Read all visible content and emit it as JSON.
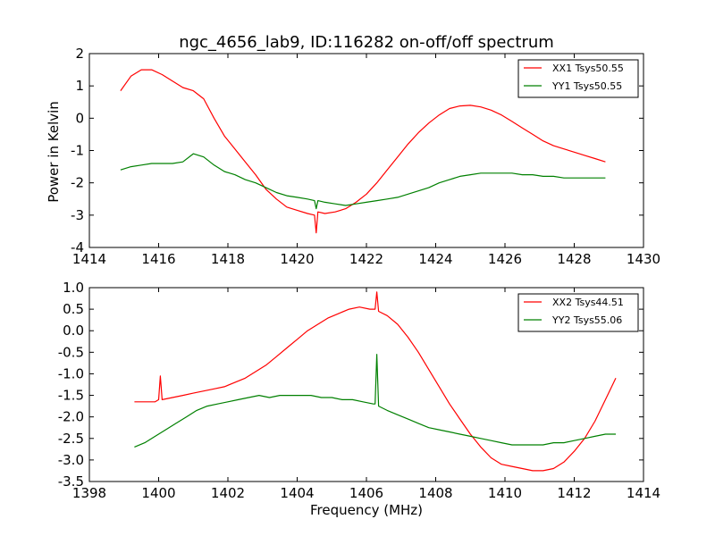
{
  "chart_data": [
    {
      "type": "line",
      "title": "ngc_4656_lab9, ID:116282 on-off/off spectrum",
      "xlabel": "",
      "ylabel": "Power in Kelvin",
      "xlim": [
        1414,
        1430
      ],
      "ylim": [
        -4,
        2
      ],
      "xticks": [
        "1414",
        "1416",
        "1418",
        "1420",
        "1422",
        "1424",
        "1426",
        "1428",
        "1430"
      ],
      "yticks": [
        "-4",
        "-3",
        "-2",
        "-1",
        "0",
        "1",
        "2"
      ],
      "grid": false,
      "legend_position": "top-right",
      "series": [
        {
          "name": "XX1 Tsys50.55",
          "color": "#ff0000",
          "x": [
            1414.9,
            1415.2,
            1415.5,
            1415.8,
            1416.1,
            1416.4,
            1416.7,
            1417.0,
            1417.3,
            1417.6,
            1417.9,
            1418.2,
            1418.5,
            1418.8,
            1419.1,
            1419.4,
            1419.7,
            1420.0,
            1420.3,
            1420.5,
            1420.55,
            1420.6,
            1420.8,
            1421.1,
            1421.4,
            1421.7,
            1422.0,
            1422.3,
            1422.6,
            1422.9,
            1423.2,
            1423.5,
            1423.8,
            1424.1,
            1424.4,
            1424.7,
            1425.0,
            1425.3,
            1425.6,
            1425.9,
            1426.2,
            1426.5,
            1426.8,
            1427.1,
            1427.4,
            1427.7,
            1428.0,
            1428.3,
            1428.6,
            1428.9
          ],
          "y": [
            0.85,
            1.3,
            1.5,
            1.5,
            1.35,
            1.15,
            0.95,
            0.85,
            0.6,
            0.0,
            -0.55,
            -0.95,
            -1.35,
            -1.75,
            -2.2,
            -2.5,
            -2.75,
            -2.85,
            -2.95,
            -3.0,
            -3.55,
            -2.9,
            -2.95,
            -2.9,
            -2.8,
            -2.6,
            -2.35,
            -2.0,
            -1.6,
            -1.2,
            -0.8,
            -0.45,
            -0.15,
            0.1,
            0.3,
            0.38,
            0.4,
            0.35,
            0.25,
            0.1,
            -0.1,
            -0.3,
            -0.5,
            -0.7,
            -0.85,
            -0.95,
            -1.05,
            -1.15,
            -1.25,
            -1.35
          ]
        },
        {
          "name": "YY1 Tsys50.55",
          "color": "#008000",
          "x": [
            1414.9,
            1415.2,
            1415.5,
            1415.8,
            1416.1,
            1416.4,
            1416.7,
            1417.0,
            1417.3,
            1417.6,
            1417.9,
            1418.2,
            1418.5,
            1418.8,
            1419.1,
            1419.4,
            1419.7,
            1420.0,
            1420.3,
            1420.5,
            1420.55,
            1420.6,
            1420.8,
            1421.1,
            1421.4,
            1421.7,
            1422.0,
            1422.3,
            1422.6,
            1422.9,
            1423.2,
            1423.5,
            1423.8,
            1424.1,
            1424.4,
            1424.7,
            1425.0,
            1425.3,
            1425.6,
            1425.9,
            1426.2,
            1426.5,
            1426.8,
            1427.1,
            1427.4,
            1427.7,
            1428.0,
            1428.3,
            1428.6,
            1428.9
          ],
          "y": [
            -1.6,
            -1.5,
            -1.45,
            -1.4,
            -1.4,
            -1.4,
            -1.35,
            -1.1,
            -1.2,
            -1.45,
            -1.65,
            -1.75,
            -1.9,
            -2.0,
            -2.15,
            -2.3,
            -2.4,
            -2.45,
            -2.5,
            -2.55,
            -2.8,
            -2.55,
            -2.6,
            -2.65,
            -2.7,
            -2.65,
            -2.6,
            -2.55,
            -2.5,
            -2.45,
            -2.35,
            -2.25,
            -2.15,
            -2.0,
            -1.9,
            -1.8,
            -1.75,
            -1.7,
            -1.7,
            -1.7,
            -1.7,
            -1.75,
            -1.75,
            -1.8,
            -1.8,
            -1.85,
            -1.85,
            -1.85,
            -1.85,
            -1.85
          ]
        }
      ]
    },
    {
      "type": "line",
      "title": "",
      "xlabel": "Frequency (MHz)",
      "ylabel": "",
      "xlim": [
        1398,
        1414
      ],
      "ylim": [
        -3.5,
        1.0
      ],
      "xticks": [
        "1398",
        "1400",
        "1402",
        "1404",
        "1406",
        "1408",
        "1410",
        "1412",
        "1414"
      ],
      "yticks": [
        "-3.5",
        "-3.0",
        "-2.5",
        "-2.0",
        "-1.5",
        "-1.0",
        "-0.5",
        "0.0",
        "0.5",
        "1.0"
      ],
      "grid": false,
      "legend_position": "top-right",
      "series": [
        {
          "name": "XX2 Tsys44.51",
          "color": "#ff0000",
          "x": [
            1399.3,
            1399.6,
            1399.9,
            1400.0,
            1400.05,
            1400.1,
            1400.4,
            1400.7,
            1401.0,
            1401.3,
            1401.6,
            1401.9,
            1402.2,
            1402.5,
            1402.8,
            1403.1,
            1403.4,
            1403.7,
            1404.0,
            1404.3,
            1404.6,
            1404.9,
            1405.2,
            1405.5,
            1405.8,
            1406.1,
            1406.25,
            1406.3,
            1406.35,
            1406.6,
            1406.9,
            1407.2,
            1407.5,
            1407.8,
            1408.1,
            1408.4,
            1408.7,
            1409.0,
            1409.3,
            1409.6,
            1409.9,
            1410.2,
            1410.5,
            1410.8,
            1411.1,
            1411.4,
            1411.7,
            1412.0,
            1412.3,
            1412.6,
            1412.9,
            1413.2
          ],
          "y": [
            -1.65,
            -1.65,
            -1.65,
            -1.6,
            -1.05,
            -1.6,
            -1.55,
            -1.5,
            -1.45,
            -1.4,
            -1.35,
            -1.3,
            -1.2,
            -1.1,
            -0.95,
            -0.8,
            -0.6,
            -0.4,
            -0.2,
            0.0,
            0.15,
            0.3,
            0.4,
            0.5,
            0.55,
            0.5,
            0.5,
            0.9,
            0.45,
            0.35,
            0.15,
            -0.15,
            -0.5,
            -0.9,
            -1.3,
            -1.7,
            -2.05,
            -2.4,
            -2.7,
            -2.95,
            -3.1,
            -3.15,
            -3.2,
            -3.25,
            -3.25,
            -3.2,
            -3.05,
            -2.8,
            -2.5,
            -2.1,
            -1.6,
            -1.1
          ]
        },
        {
          "name": "YY2 Tsys55.06",
          "color": "#008000",
          "x": [
            1399.3,
            1399.6,
            1399.9,
            1400.2,
            1400.5,
            1400.8,
            1401.1,
            1401.4,
            1401.7,
            1402.0,
            1402.3,
            1402.6,
            1402.9,
            1403.2,
            1403.5,
            1403.8,
            1404.1,
            1404.4,
            1404.7,
            1405.0,
            1405.3,
            1405.6,
            1405.9,
            1406.2,
            1406.25,
            1406.3,
            1406.35,
            1406.6,
            1406.9,
            1407.2,
            1407.5,
            1407.8,
            1408.1,
            1408.4,
            1408.7,
            1409.0,
            1409.3,
            1409.6,
            1409.9,
            1410.2,
            1410.5,
            1410.8,
            1411.1,
            1411.4,
            1411.7,
            1412.0,
            1412.3,
            1412.6,
            1412.9,
            1413.2
          ],
          "y": [
            -2.7,
            -2.6,
            -2.45,
            -2.3,
            -2.15,
            -2.0,
            -1.85,
            -1.75,
            -1.7,
            -1.65,
            -1.6,
            -1.55,
            -1.5,
            -1.55,
            -1.5,
            -1.5,
            -1.5,
            -1.5,
            -1.55,
            -1.55,
            -1.6,
            -1.6,
            -1.65,
            -1.7,
            -1.7,
            -0.55,
            -1.75,
            -1.85,
            -1.95,
            -2.05,
            -2.15,
            -2.25,
            -2.3,
            -2.35,
            -2.4,
            -2.45,
            -2.5,
            -2.55,
            -2.6,
            -2.65,
            -2.65,
            -2.65,
            -2.65,
            -2.6,
            -2.6,
            -2.55,
            -2.5,
            -2.45,
            -2.4,
            -2.4
          ]
        }
      ]
    }
  ]
}
